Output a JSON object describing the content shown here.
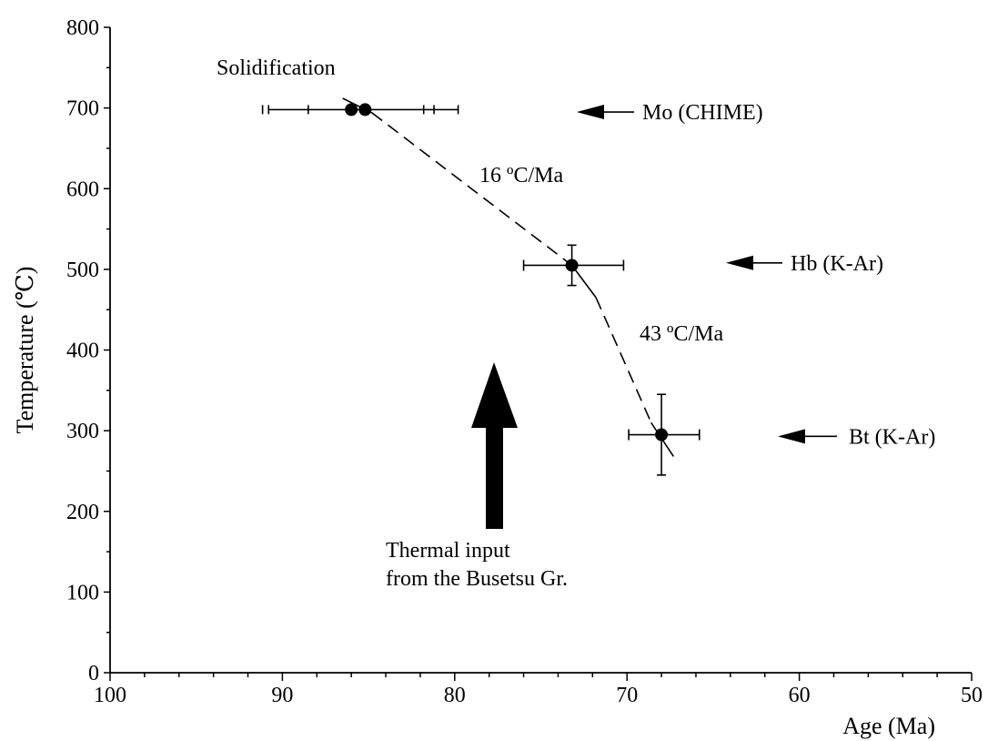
{
  "chart_data": {
    "type": "scatter",
    "xlabel": "Age (Ma)",
    "ylabel": "Temperature (℃)",
    "xlim": [
      100,
      50
    ],
    "ylim": [
      0,
      800
    ],
    "x_reversed": true,
    "x_ticks": [
      100,
      90,
      80,
      70,
      60,
      50
    ],
    "y_ticks": [
      0,
      100,
      200,
      300,
      400,
      500,
      600,
      700,
      800
    ],
    "x_tick_labels": [
      "100",
      "90",
      "80",
      "70",
      "60",
      "50"
    ],
    "y_tick_labels": [
      "0",
      "100",
      "200",
      "300",
      "400",
      "500",
      "600",
      "700",
      "800"
    ],
    "grid": false,
    "points": [
      {
        "x": 86.0,
        "y": 698
      },
      {
        "x": 85.2,
        "y": 698
      },
      {
        "x": 73.2,
        "y": 505,
        "xerr": [
          76.0,
          70.2
        ],
        "yerr": [
          480,
          530
        ]
      },
      {
        "x": 68.0,
        "y": 295,
        "xerr": [
          69.9,
          65.8
        ],
        "yerr": [
          245,
          345
        ]
      }
    ],
    "solidification_errorbar": {
      "x_min": 90.8,
      "x_max": 79.8,
      "y": 698
    },
    "trend_lines": [
      {
        "style": "solid",
        "points": [
          [
            86.5,
            712
          ],
          [
            84.8,
            694
          ]
        ]
      },
      {
        "style": "dashed",
        "points": [
          [
            84.8,
            694
          ],
          [
            73.2,
            505
          ]
        ]
      },
      {
        "style": "solid",
        "points": [
          [
            73.2,
            505
          ],
          [
            71.8,
            465
          ]
        ]
      },
      {
        "style": "dashed",
        "points": [
          [
            71.8,
            465
          ],
          [
            68.6,
            310
          ]
        ]
      },
      {
        "style": "solid",
        "points": [
          [
            68.6,
            310
          ],
          [
            67.3,
            268
          ]
        ]
      }
    ],
    "annotations": [
      {
        "text": "Solidification"
      },
      {
        "text": "16 ºC/Ma"
      },
      {
        "text": "43 ºC/Ma"
      },
      {
        "text": "Mo (CHIME)",
        "y": 695
      },
      {
        "text": "Hb (K-Ar)",
        "y": 508
      },
      {
        "text": "Bt (K-Ar)",
        "y": 293
      },
      {
        "text_lines": [
          "Thermal input",
          "from the Busetsu Gr."
        ],
        "arrow": "up-thick"
      }
    ]
  }
}
